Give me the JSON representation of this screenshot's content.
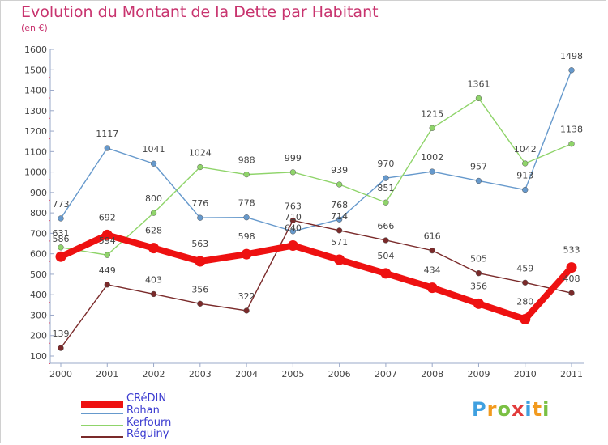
{
  "header": {
    "title": "Evolution du Montant de la Dette par Habitant",
    "unit": "(en €)"
  },
  "logo": {
    "text": "Proxiti",
    "letters": [
      "P",
      "r",
      "o",
      "x",
      "i",
      "t",
      "i"
    ],
    "letter_colors": [
      "#3fa0e0",
      "#f29a1e",
      "#7ac043",
      "#e23c3c",
      "#3fa0e0",
      "#f29a1e",
      "#7ac043"
    ]
  },
  "chart_data": {
    "type": "line",
    "title": "Evolution du Montant de la Dette par Habitant",
    "subtitle": "(en €)",
    "x": [
      "2000",
      "2001",
      "2002",
      "2003",
      "2004",
      "2005",
      "2006",
      "2007",
      "2008",
      "2009",
      "2010",
      "2011"
    ],
    "ylim": [
      100,
      1600
    ],
    "yticks": [
      100,
      200,
      300,
      400,
      500,
      600,
      700,
      800,
      900,
      1000,
      1100,
      1200,
      1300,
      1400,
      1500,
      1600
    ],
    "grid": false,
    "legend_position": "bottom-left",
    "series": [
      {
        "name": "CRéDIN",
        "color": "#ee1111",
        "values": [
          586,
          692,
          628,
          563,
          598,
          640,
          571,
          504,
          434,
          356,
          280,
          533
        ]
      },
      {
        "name": "Rohan",
        "color": "#6699cc",
        "values": [
          773,
          1117,
          1041,
          776,
          778,
          710,
          768,
          970,
          1002,
          957,
          913,
          1498
        ]
      },
      {
        "name": "Kerfourn",
        "color": "#8fd46a",
        "values": [
          631,
          594,
          800,
          1024,
          988,
          999,
          939,
          851,
          1215,
          1361,
          1042,
          1138
        ]
      },
      {
        "name": "Réguiny",
        "color": "#7a2a2a",
        "values": [
          139,
          449,
          403,
          356,
          322,
          763,
          714,
          666,
          616,
          505,
          459,
          408
        ]
      }
    ]
  }
}
